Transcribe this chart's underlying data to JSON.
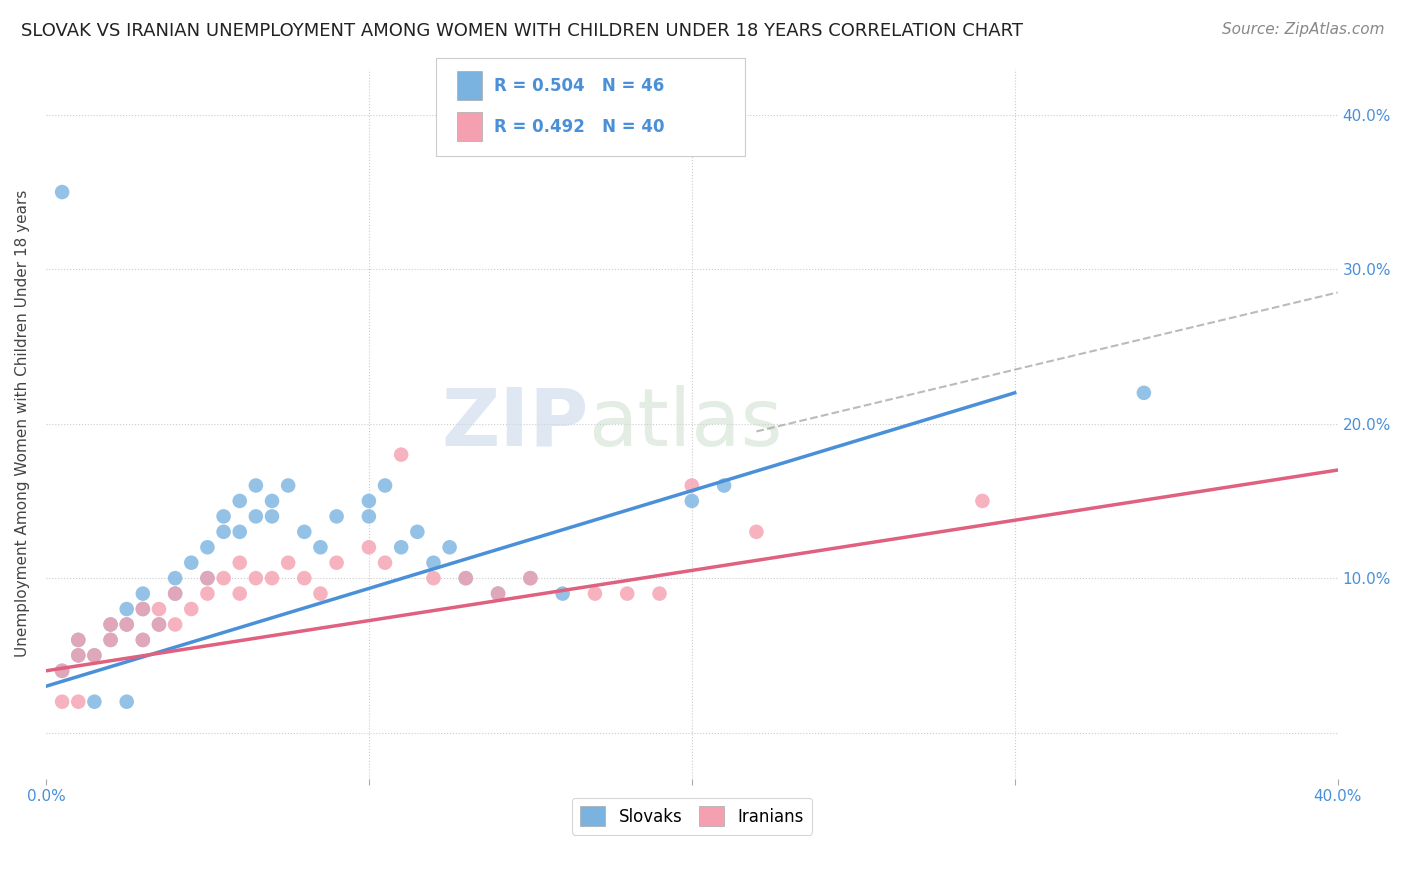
{
  "title": "SLOVAK VS IRANIAN UNEMPLOYMENT AMONG WOMEN WITH CHILDREN UNDER 18 YEARS CORRELATION CHART",
  "source": "Source: ZipAtlas.com",
  "ylabel": "Unemployment Among Women with Children Under 18 years",
  "slovak_color": "#7ab3e0",
  "iranian_color": "#f4a0b0",
  "slovak_line_color": "#4a90d9",
  "iranian_line_color": "#e06080",
  "dashed_line_color": "#aaaaaa",
  "watermark_color": "#d0dded",
  "background_color": "#ffffff",
  "title_fontsize": 13,
  "source_fontsize": 11,
  "xlim": [
    0.0,
    0.4
  ],
  "ylim": [
    -0.03,
    0.43
  ],
  "slovak_line_x": [
    0.0,
    0.3
  ],
  "slovak_line_y": [
    0.03,
    0.22
  ],
  "iranian_line_x": [
    0.0,
    0.4
  ],
  "iranian_line_y": [
    0.04,
    0.17
  ],
  "dashed_line_x": [
    0.22,
    0.4
  ],
  "dashed_line_y": [
    0.195,
    0.285
  ],
  "slovak_x": [
    0.005,
    0.01,
    0.01,
    0.015,
    0.02,
    0.02,
    0.025,
    0.025,
    0.03,
    0.03,
    0.03,
    0.035,
    0.04,
    0.04,
    0.045,
    0.05,
    0.05,
    0.055,
    0.055,
    0.06,
    0.06,
    0.065,
    0.065,
    0.07,
    0.07,
    0.075,
    0.08,
    0.085,
    0.09,
    0.1,
    0.1,
    0.105,
    0.11,
    0.115,
    0.12,
    0.125,
    0.13,
    0.14,
    0.15,
    0.16,
    0.2,
    0.21,
    0.015,
    0.025,
    0.34,
    0.005
  ],
  "slovak_y": [
    0.04,
    0.05,
    0.06,
    0.05,
    0.06,
    0.07,
    0.07,
    0.08,
    0.06,
    0.08,
    0.09,
    0.07,
    0.09,
    0.1,
    0.11,
    0.1,
    0.12,
    0.13,
    0.14,
    0.13,
    0.15,
    0.14,
    0.16,
    0.14,
    0.15,
    0.16,
    0.13,
    0.12,
    0.14,
    0.14,
    0.15,
    0.16,
    0.12,
    0.13,
    0.11,
    0.12,
    0.1,
    0.09,
    0.1,
    0.09,
    0.15,
    0.16,
    0.02,
    0.02,
    0.22,
    0.35
  ],
  "iranian_x": [
    0.005,
    0.01,
    0.01,
    0.015,
    0.02,
    0.02,
    0.025,
    0.03,
    0.03,
    0.035,
    0.035,
    0.04,
    0.04,
    0.045,
    0.05,
    0.05,
    0.055,
    0.06,
    0.06,
    0.065,
    0.07,
    0.075,
    0.08,
    0.085,
    0.09,
    0.1,
    0.105,
    0.11,
    0.12,
    0.13,
    0.14,
    0.15,
    0.19,
    0.22,
    0.29,
    0.005,
    0.01,
    0.17,
    0.18,
    0.2
  ],
  "iranian_y": [
    0.04,
    0.05,
    0.06,
    0.05,
    0.06,
    0.07,
    0.07,
    0.06,
    0.08,
    0.07,
    0.08,
    0.09,
    0.07,
    0.08,
    0.09,
    0.1,
    0.1,
    0.09,
    0.11,
    0.1,
    0.1,
    0.11,
    0.1,
    0.09,
    0.11,
    0.12,
    0.11,
    0.18,
    0.1,
    0.1,
    0.09,
    0.1,
    0.09,
    0.13,
    0.15,
    0.02,
    0.02,
    0.09,
    0.09,
    0.16
  ]
}
